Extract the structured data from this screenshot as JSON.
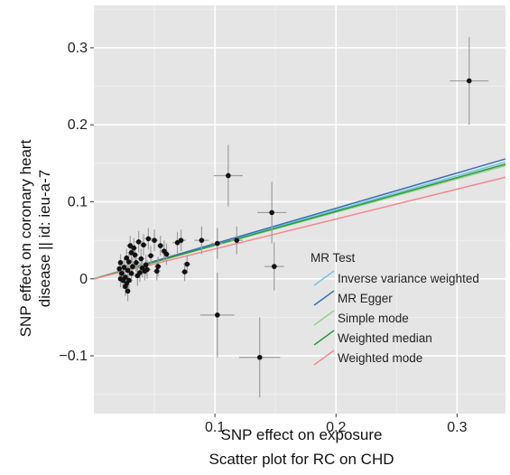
{
  "chart_data": {
    "type": "scatter",
    "xlabel": "SNP effect on exposure",
    "ylabel": "SNP effect on coronary heart disease || id: ieu-a-7",
    "ylabel_lines": [
      "SNP effect on coronary heart",
      "disease || id: ieu-a-7"
    ],
    "caption": "Scatter plot for RC on CHD",
    "xlim": [
      0,
      0.34
    ],
    "ylim": [
      -0.175,
      0.355
    ],
    "x_ticks": [
      0.1,
      0.2,
      0.3
    ],
    "x_tick_labels": [
      "0.1",
      "0.2",
      "0.3"
    ],
    "y_ticks": [
      -0.1,
      0,
      0.1,
      0.2,
      0.3
    ],
    "y_tick_labels": [
      "−0.1",
      "0",
      "0.1",
      "0.2",
      "0.3"
    ],
    "grid": true,
    "background": "#e5e5e5",
    "legend": {
      "title": "MR Test",
      "placement": "lower-right inside plot"
    },
    "lines": [
      {
        "name": "Inverse variance weighted",
        "slope": 0.446,
        "color": "#74c6e6"
      },
      {
        "name": "MR Egger",
        "slope": 0.458,
        "color": "#3d6fb5"
      },
      {
        "name": "Simple mode",
        "slope": 0.432,
        "color": "#96d28a"
      },
      {
        "name": "Weighted median",
        "slope": 0.438,
        "color": "#2b9a3a"
      },
      {
        "name": "Weighted mode",
        "slope": 0.388,
        "color": "#f4878f"
      }
    ],
    "points": [
      {
        "x": 0.31,
        "y": 0.257,
        "xerr": 0.016,
        "yerr": 0.057
      },
      {
        "x": 0.111,
        "y": 0.134,
        "xerr": 0.012,
        "yerr": 0.04
      },
      {
        "x": 0.147,
        "y": 0.086,
        "xerr": 0.012,
        "yerr": 0.04
      },
      {
        "x": 0.149,
        "y": 0.016,
        "xerr": 0.008,
        "yerr": 0.031
      },
      {
        "x": 0.102,
        "y": -0.047,
        "xerr": 0.014,
        "yerr": 0.055
      },
      {
        "x": 0.137,
        "y": -0.102,
        "xerr": 0.017,
        "yerr": 0.052
      },
      {
        "x": 0.102,
        "y": 0.046,
        "xerr": 0.005,
        "yerr": 0.02
      },
      {
        "x": 0.118,
        "y": 0.05,
        "xerr": 0.005,
        "yerr": 0.018
      },
      {
        "x": 0.089,
        "y": 0.05,
        "xerr": 0.006,
        "yerr": 0.018
      },
      {
        "x": 0.072,
        "y": 0.05,
        "xerr": 0.004,
        "yerr": 0.014
      },
      {
        "x": 0.069,
        "y": 0.047,
        "xerr": 0.004,
        "yerr": 0.014
      },
      {
        "x": 0.077,
        "y": 0.019,
        "xerr": 0.003,
        "yerr": 0.012
      },
      {
        "x": 0.075,
        "y": 0.009,
        "xerr": 0.003,
        "yerr": 0.012
      },
      {
        "x": 0.06,
        "y": 0.032,
        "xerr": 0.003,
        "yerr": 0.014
      },
      {
        "x": 0.058,
        "y": 0.036,
        "xerr": 0.003,
        "yerr": 0.014
      },
      {
        "x": 0.055,
        "y": 0.043,
        "xerr": 0.003,
        "yerr": 0.013
      },
      {
        "x": 0.053,
        "y": 0.016,
        "xerr": 0.003,
        "yerr": 0.013
      },
      {
        "x": 0.052,
        "y": 0.01,
        "xerr": 0.003,
        "yerr": 0.012
      },
      {
        "x": 0.05,
        "y": 0.05,
        "xerr": 0.003,
        "yerr": 0.014
      },
      {
        "x": 0.047,
        "y": 0.03,
        "xerr": 0.003,
        "yerr": 0.013
      },
      {
        "x": 0.045,
        "y": 0.052,
        "xerr": 0.003,
        "yerr": 0.014
      },
      {
        "x": 0.043,
        "y": 0.018,
        "xerr": 0.003,
        "yerr": 0.013
      },
      {
        "x": 0.042,
        "y": 0.01,
        "xerr": 0.003,
        "yerr": 0.012
      },
      {
        "x": 0.041,
        "y": 0.044,
        "xerr": 0.003,
        "yerr": 0.014
      },
      {
        "x": 0.04,
        "y": 0.014,
        "xerr": 0.003,
        "yerr": 0.012
      },
      {
        "x": 0.039,
        "y": 0.026,
        "xerr": 0.003,
        "yerr": 0.013
      },
      {
        "x": 0.037,
        "y": 0.048,
        "xerr": 0.003,
        "yerr": 0.014
      },
      {
        "x": 0.036,
        "y": 0.004,
        "xerr": 0.003,
        "yerr": 0.013
      },
      {
        "x": 0.035,
        "y": 0.021,
        "xerr": 0.003,
        "yerr": 0.012
      },
      {
        "x": 0.034,
        "y": 0.031,
        "xerr": 0.003,
        "yerr": 0.013
      },
      {
        "x": 0.033,
        "y": 0.04,
        "xerr": 0.003,
        "yerr": 0.013
      },
      {
        "x": 0.032,
        "y": 0.016,
        "xerr": 0.003,
        "yerr": 0.012
      },
      {
        "x": 0.031,
        "y": 0.007,
        "xerr": 0.003,
        "yerr": 0.012
      },
      {
        "x": 0.031,
        "y": 0.034,
        "xerr": 0.003,
        "yerr": 0.013
      },
      {
        "x": 0.03,
        "y": 0.043,
        "xerr": 0.003,
        "yerr": 0.013
      },
      {
        "x": 0.029,
        "y": 0.022,
        "xerr": 0.003,
        "yerr": 0.012
      },
      {
        "x": 0.029,
        "y": -0.002,
        "xerr": 0.003,
        "yerr": 0.012
      },
      {
        "x": 0.028,
        "y": 0.011,
        "xerr": 0.002,
        "yerr": 0.012
      },
      {
        "x": 0.028,
        "y": -0.016,
        "xerr": 0.002,
        "yerr": 0.013
      },
      {
        "x": 0.027,
        "y": 0.027,
        "xerr": 0.002,
        "yerr": 0.012
      },
      {
        "x": 0.027,
        "y": -0.006,
        "xerr": 0.002,
        "yerr": 0.012
      },
      {
        "x": 0.026,
        "y": 0.002,
        "xerr": 0.002,
        "yerr": 0.012
      },
      {
        "x": 0.026,
        "y": -0.01,
        "xerr": 0.002,
        "yerr": 0.012
      },
      {
        "x": 0.025,
        "y": 0.015,
        "xerr": 0.002,
        "yerr": 0.012
      },
      {
        "x": 0.024,
        "y": -0.002,
        "xerr": 0.002,
        "yerr": 0.011
      },
      {
        "x": 0.023,
        "y": 0.007,
        "xerr": 0.002,
        "yerr": 0.011
      },
      {
        "x": 0.022,
        "y": 0.021,
        "xerr": 0.002,
        "yerr": 0.011
      },
      {
        "x": 0.021,
        "y": 0.013,
        "xerr": 0.002,
        "yerr": 0.011
      },
      {
        "x": 0.038,
        "y": 0.008,
        "xerr": 0.003,
        "yerr": 0.012
      },
      {
        "x": 0.044,
        "y": 0.012,
        "xerr": 0.003,
        "yerr": 0.012
      },
      {
        "x": 0.022,
        "y": 0.0,
        "xerr": 0.002,
        "yerr": 0.011
      }
    ]
  }
}
